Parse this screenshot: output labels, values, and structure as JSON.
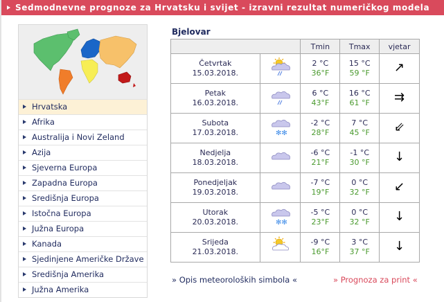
{
  "header": {
    "title": "Sedmodnevne prognoze za Hrvatsku i svijet - izravni rezultat numeričkog modela"
  },
  "sidebar": {
    "map_alt": "world map",
    "items": [
      {
        "label": "Hrvatska",
        "active": true
      },
      {
        "label": "Afrika"
      },
      {
        "label": "Australija i Novi Zeland"
      },
      {
        "label": "Azija"
      },
      {
        "label": "Sjeverna Europa"
      },
      {
        "label": "Zapadna Europa"
      },
      {
        "label": "Središnja Europa"
      },
      {
        "label": "Istočna Europa"
      },
      {
        "label": "Južna Europa"
      },
      {
        "label": "Kanada"
      },
      {
        "label": "Sjedinjene Američke Države"
      },
      {
        "label": "Središnja Amerika"
      },
      {
        "label": "Južna Amerika"
      }
    ]
  },
  "forecast": {
    "city": "Bjelovar",
    "columns": {
      "tmin": "Tmin",
      "tmax": "Tmax",
      "wind": "vjetar"
    },
    "rows": [
      {
        "day": "Četvrtak",
        "date": "15.03.2018.",
        "icon": "sun-cloud-rain-icon",
        "tmin_c": "2 °C",
        "tmin_f": "36°F",
        "tmax_c": "15 °C",
        "tmax_f": "59 °F",
        "wind": "↗",
        "wind_name": "wind-northeast-strong-icon"
      },
      {
        "day": "Petak",
        "date": "16.03.2018.",
        "icon": "cloud-rain-icon",
        "tmin_c": "6 °C",
        "tmin_f": "43°F",
        "tmax_c": "16 °C",
        "tmax_f": "61 °F",
        "wind": "⇉",
        "wind_name": "wind-east-strong-icon"
      },
      {
        "day": "Subota",
        "date": "17.03.2018.",
        "icon": "cloud-snow-icon",
        "tmin_c": "-2 °C",
        "tmin_f": "28°F",
        "tmax_c": "7 °C",
        "tmax_f": "45 °F",
        "wind": "⇙",
        "wind_name": "wind-southwest-strong-icon"
      },
      {
        "day": "Nedjelja",
        "date": "18.03.2018.",
        "icon": "cloud-icon",
        "tmin_c": "-6 °C",
        "tmin_f": "21°F",
        "tmax_c": "-1 °C",
        "tmax_f": "30 °F",
        "wind": "↓",
        "wind_name": "wind-south-icon"
      },
      {
        "day": "Ponedjeljak",
        "date": "19.03.2018.",
        "icon": "cloud-icon",
        "tmin_c": "-7 °C",
        "tmin_f": "19°F",
        "tmax_c": "0 °C",
        "tmax_f": "32 °F",
        "wind": "↙",
        "wind_name": "wind-southwest-icon"
      },
      {
        "day": "Utorak",
        "date": "20.03.2018.",
        "icon": "cloud-snow-icon",
        "tmin_c": "-5 °C",
        "tmin_f": "23°F",
        "tmax_c": "0 °C",
        "tmax_f": "32 °F",
        "wind": "↓",
        "wind_name": "wind-south-icon"
      },
      {
        "day": "Srijeda",
        "date": "21.03.2018.",
        "icon": "sun-cloud-icon",
        "tmin_c": "-9 °C",
        "tmin_f": "16°F",
        "tmax_c": "3 °C",
        "tmax_f": "37 °F",
        "wind": "↓",
        "wind_name": "wind-south-icon"
      }
    ]
  },
  "footer": {
    "symbols_link": "» Opis meteoroloških simbola «",
    "print_link": "» Prognoza za print «"
  },
  "colors": {
    "accent": "#d94a5c",
    "active_bg": "#fdf1d6",
    "fahrenheit": "#4a9a2e",
    "text": "#1f2a5e"
  }
}
